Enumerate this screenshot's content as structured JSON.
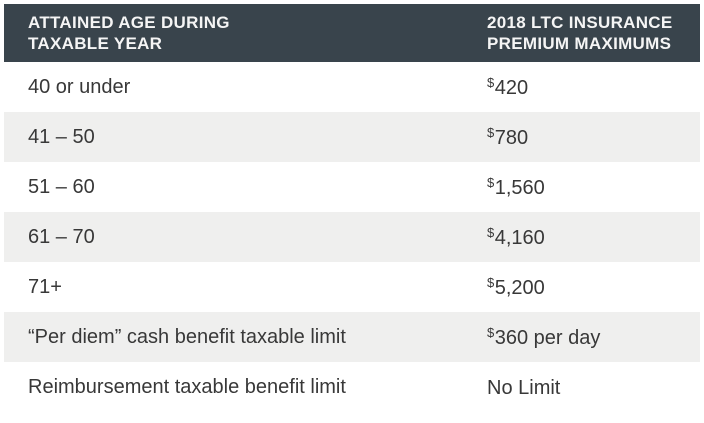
{
  "colors": {
    "header_bg": "#39444C",
    "header_text": "#F5F5F5",
    "stripe": "#EFEFEE",
    "body_text": "#383838"
  },
  "table": {
    "header": {
      "col1_line1": "ATTAINED AGE DURING",
      "col1_line2": "TAXABLE YEAR",
      "col2_line1": "2018 LTC INSURANCE",
      "col2_line2": "PREMIUM MAXIMUMS"
    },
    "rows": [
      {
        "label": "40 or under",
        "currency": "$",
        "value": "420"
      },
      {
        "label": "41 – 50",
        "currency": "$",
        "value": "780"
      },
      {
        "label": "51 – 60",
        "currency": "$",
        "value": "1,560"
      },
      {
        "label": "61 – 70",
        "currency": "$",
        "value": "4,160"
      },
      {
        "label": "71+",
        "currency": "$",
        "value": "5,200"
      },
      {
        "label": "“Per diem” cash benefit taxable limit",
        "currency": "$",
        "value": "360 per day"
      },
      {
        "label": "Reimbursement taxable benefit limit",
        "currency": "",
        "value": "No Limit"
      }
    ]
  },
  "chart_data": {
    "type": "table",
    "title": "2018 LTC Insurance Premium Maximums",
    "columns": [
      "ATTAINED AGE DURING TAXABLE YEAR",
      "2018 LTC INSURANCE PREMIUM MAXIMUMS"
    ],
    "rows": [
      [
        "40 or under",
        "$420"
      ],
      [
        "41 – 50",
        "$780"
      ],
      [
        "51 – 60",
        "$1,560"
      ],
      [
        "61 – 70",
        "$4,160"
      ],
      [
        "71+",
        "$5,200"
      ],
      [
        "“Per diem” cash benefit taxable limit",
        "$360 per day"
      ],
      [
        "Reimbursement taxable benefit limit",
        "No Limit"
      ]
    ]
  }
}
